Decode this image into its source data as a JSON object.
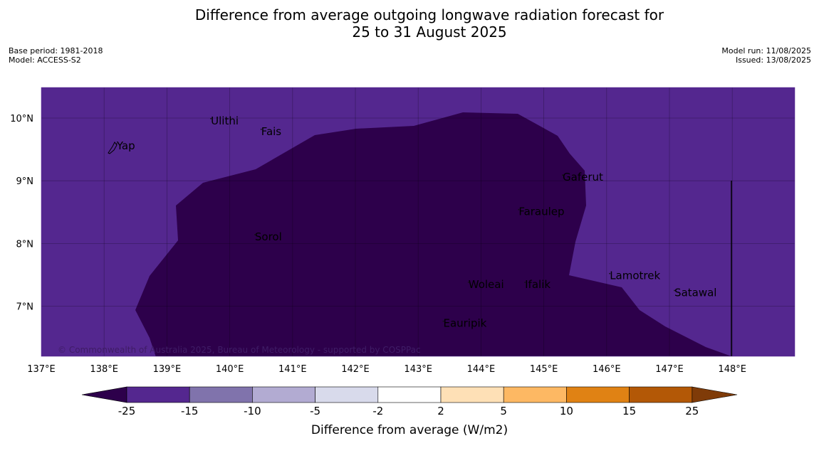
{
  "title": {
    "line1": "Difference from average outgoing longwave radiation forecast for",
    "line2": "25 to 31 August 2025"
  },
  "meta_left": {
    "base_period": "Base period: 1981-2018",
    "model": "Model: ACCESS-S2"
  },
  "meta_right": {
    "model_run": "Model run: 11/08/2025",
    "issued": "Issued: 13/08/2025"
  },
  "map": {
    "background_color": "#54278f",
    "anomaly_region_color": "#2d004b",
    "lon_ticks": [
      "137°E",
      "138°E",
      "139°E",
      "140°E",
      "141°E",
      "142°E",
      "143°E",
      "144°E",
      "145°E",
      "146°E",
      "147°E",
      "148°E"
    ],
    "lat_ticks": [
      "10°N",
      "9°N",
      "8°N",
      "7°N"
    ],
    "places": [
      {
        "name": "Yap",
        "lon": 138.2,
        "lat": 9.5
      },
      {
        "name": "Ulithi",
        "lon": 139.7,
        "lat": 9.9
      },
      {
        "name": "Fais",
        "lon": 140.5,
        "lat": 9.73
      },
      {
        "name": "Gaferut",
        "lon": 145.3,
        "lat": 9.0
      },
      {
        "name": "Faraulep",
        "lon": 144.6,
        "lat": 8.45
      },
      {
        "name": "Sorol",
        "lon": 140.4,
        "lat": 8.05
      },
      {
        "name": "Lamotrek",
        "lon": 146.05,
        "lat": 7.43
      },
      {
        "name": "Satawal",
        "lon": 147.08,
        "lat": 7.16
      },
      {
        "name": "Woleai",
        "lon": 143.8,
        "lat": 7.29
      },
      {
        "name": "Ifalik",
        "lon": 144.7,
        "lat": 7.29
      },
      {
        "name": "Eauripik",
        "lon": 143.4,
        "lat": 6.67
      }
    ],
    "copyright": "© Commonwealth of Australia 2025, Bureau of Meteorology - supported by COSPPac"
  },
  "colorbar": {
    "title": "Difference from average (W/m2)",
    "labels": [
      "-25",
      "-15",
      "-10",
      "-5",
      "-2",
      "2",
      "5",
      "10",
      "15",
      "25"
    ],
    "colors": [
      "#54278f",
      "#8073ac",
      "#b2abd2",
      "#d8daeb",
      "#ffffff",
      "#fee0b6",
      "#fdb863",
      "#e08214",
      "#b35806"
    ],
    "under_color": "#2d004b",
    "over_color": "#7f3b08"
  }
}
